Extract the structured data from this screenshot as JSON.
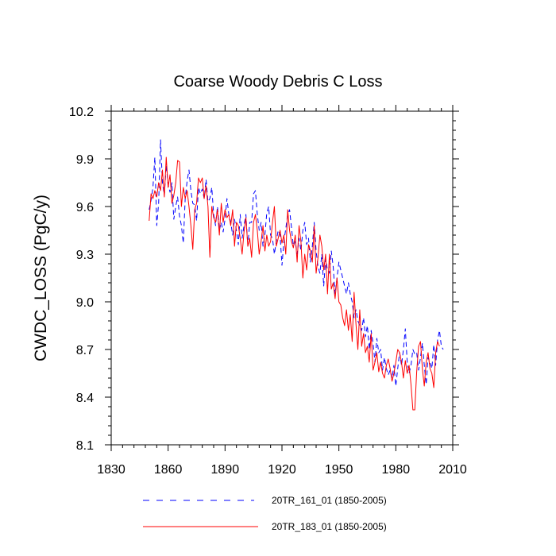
{
  "chart_data": {
    "type": "line",
    "title": "Coarse Woody Debris C Loss",
    "xlabel": "",
    "ylabel": "CWDC_LOSS  (PgC/y)",
    "xlim": [
      1830,
      2010
    ],
    "ylim": [
      8.1,
      10.2
    ],
    "xticks": [
      1830,
      1860,
      1890,
      1920,
      1950,
      1980,
      2010
    ],
    "xtick_labels": [
      "1830",
      "1860",
      "1890",
      "1920",
      "1950",
      "1980",
      "2010"
    ],
    "yticks": [
      8.1,
      8.4,
      8.7,
      9.0,
      9.3,
      9.6,
      9.9,
      10.2
    ],
    "ytick_labels": [
      "8.1",
      "8.4",
      "8.7",
      "9.0",
      "9.3",
      "9.6",
      "9.9",
      "10.2"
    ],
    "grid": false,
    "legend_position": "bottom",
    "series": [
      {
        "name": "20TR_161_01 (1850-2005)",
        "color": "#0000ff",
        "style": "dashed",
        "x_start": 1850,
        "values": [
          9.58,
          9.64,
          9.72,
          9.91,
          9.48,
          9.62,
          10.02,
          9.75,
          9.67,
          9.86,
          9.74,
          9.69,
          9.75,
          9.52,
          9.6,
          9.66,
          9.54,
          9.48,
          9.37,
          9.65,
          9.76,
          9.83,
          9.7,
          9.62,
          9.61,
          9.51,
          9.72,
          9.68,
          9.71,
          9.65,
          9.77,
          9.63,
          9.65,
          9.72,
          9.55,
          9.48,
          9.6,
          9.45,
          9.5,
          9.44,
          9.52,
          9.65,
          9.55,
          9.5,
          9.42,
          9.52,
          9.45,
          9.36,
          9.55,
          9.4,
          9.48,
          9.55,
          9.35,
          9.5,
          9.5,
          9.68,
          9.7,
          9.55,
          9.45,
          9.5,
          9.35,
          9.42,
          9.56,
          9.6,
          9.42,
          9.4,
          9.3,
          9.38,
          9.45,
          9.42,
          9.23,
          9.38,
          9.46,
          9.55,
          9.58,
          9.47,
          9.35,
          9.38,
          9.3,
          9.4,
          9.32,
          9.45,
          9.5,
          9.36,
          9.4,
          9.25,
          9.35,
          9.5,
          9.32,
          9.22,
          9.18,
          9.3,
          9.1,
          9.27,
          9.2,
          9.18,
          9.32,
          9.22,
          9.05,
          9.15,
          9.25,
          9.2,
          9.15,
          9.1,
          9.05,
          9.12,
          9.05,
          9.0,
          8.9,
          8.95,
          8.88,
          8.85,
          8.82,
          8.9,
          8.78,
          8.85,
          8.7,
          8.82,
          8.74,
          8.62,
          8.77,
          8.68,
          8.7,
          8.57,
          8.65,
          8.58,
          8.54,
          8.57,
          8.52,
          8.6,
          8.47,
          8.58,
          8.68,
          8.6,
          8.7,
          8.83,
          8.62,
          8.55,
          8.6,
          8.7,
          8.67,
          8.68,
          8.57,
          8.65,
          8.74,
          8.6,
          8.48,
          8.65,
          8.62,
          8.58,
          8.73,
          8.6,
          8.76,
          8.82,
          8.72,
          8.7
        ]
      },
      {
        "name": "20TR_183_01 (1850-2005)",
        "color": "#ff0000",
        "style": "solid",
        "x_start": 1850,
        "values": [
          9.51,
          9.68,
          9.65,
          9.7,
          9.66,
          9.75,
          9.7,
          9.83,
          9.66,
          9.91,
          9.72,
          9.8,
          9.62,
          9.67,
          9.75,
          9.89,
          9.88,
          9.6,
          9.72,
          9.65,
          9.7,
          9.6,
          9.48,
          9.33,
          9.58,
          9.62,
          9.78,
          9.75,
          9.78,
          9.65,
          9.73,
          9.6,
          9.28,
          9.6,
          9.53,
          9.5,
          9.58,
          9.42,
          9.62,
          9.5,
          9.58,
          9.53,
          9.55,
          9.48,
          9.58,
          9.35,
          9.5,
          9.48,
          9.4,
          9.3,
          9.44,
          9.53,
          9.35,
          9.4,
          9.28,
          9.5,
          9.55,
          9.45,
          9.3,
          9.38,
          9.48,
          9.32,
          9.42,
          9.35,
          9.38,
          9.5,
          9.6,
          9.35,
          9.4,
          9.45,
          9.37,
          9.42,
          9.3,
          9.58,
          9.45,
          9.38,
          9.34,
          9.42,
          9.25,
          9.48,
          9.38,
          9.15,
          9.3,
          9.2,
          9.36,
          9.32,
          9.25,
          9.48,
          9.18,
          9.28,
          9.42,
          9.35,
          9.2,
          9.3,
          9.05,
          9.3,
          9.08,
          9.12,
          9.02,
          9.15,
          9.0,
          8.98,
          8.9,
          8.85,
          8.95,
          8.82,
          8.92,
          8.75,
          9.06,
          8.86,
          8.7,
          8.95,
          8.72,
          8.8,
          8.68,
          8.72,
          8.62,
          8.8,
          8.57,
          8.62,
          8.68,
          8.56,
          8.62,
          8.55,
          8.52,
          8.6,
          8.64,
          8.58,
          8.5,
          8.55,
          8.62,
          8.7,
          8.68,
          8.62,
          8.52,
          8.63,
          8.55,
          8.6,
          8.48,
          8.32,
          8.32,
          8.56,
          8.72,
          8.75,
          8.58,
          8.47,
          8.62,
          8.68,
          8.58,
          8.55,
          8.46,
          8.68,
          8.75,
          8.72
        ]
      }
    ]
  }
}
